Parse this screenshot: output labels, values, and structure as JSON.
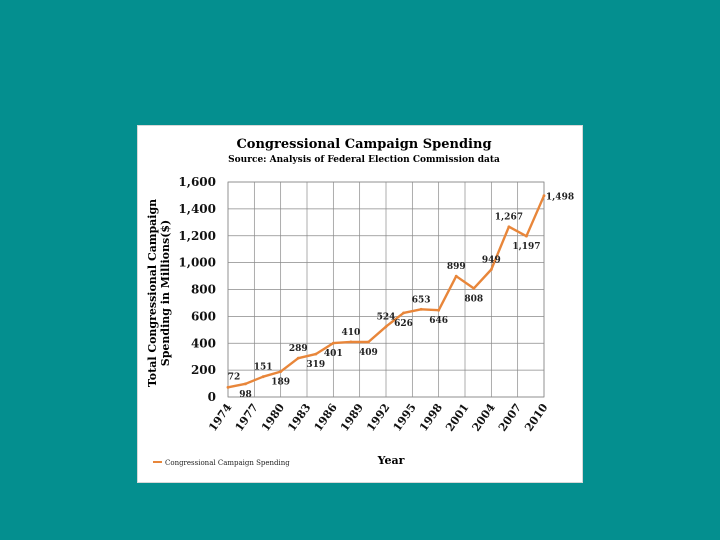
{
  "slide": {
    "background": "#048f8f"
  },
  "chart_data": {
    "type": "line",
    "title": "Congressional Campaign Spending",
    "subtitle": "Source: Analysis of Federal Election Commission data",
    "ylabel_line1": "Total Congressional Campaign",
    "ylabel_line2": "Spending in Millions($)",
    "xlabel": "Year",
    "ylim": [
      0,
      1600
    ],
    "yticks": [
      0,
      200,
      400,
      600,
      800,
      1000,
      1200,
      1400,
      1600
    ],
    "ytick_labels": [
      "0",
      "200",
      "400",
      "600",
      "800",
      "1,000",
      "1,200",
      "1,400",
      "1,600"
    ],
    "xticks": [
      "1974",
      "1977",
      "1980",
      "1983",
      "1986",
      "1989",
      "1992",
      "1995",
      "1998",
      "2001",
      "2004",
      "2007",
      "2010"
    ],
    "series": [
      {
        "name": "Congressional Campaign Spending",
        "color": "#e8863a",
        "x": [
          1974,
          1976,
          1978,
          1980,
          1982,
          1984,
          1986,
          1988,
          1990,
          1992,
          1994,
          1996,
          1998,
          2000,
          2002,
          2004,
          2006,
          2008,
          2010
        ],
        "values": [
          72,
          98,
          151,
          189,
          289,
          319,
          401,
          410,
          409,
          524,
          626,
          653,
          646,
          899,
          808,
          949,
          1267,
          1197,
          1498
        ],
        "labels": [
          "72",
          "98",
          "151",
          "189",
          "289",
          "319",
          "401",
          "410",
          "409",
          "524",
          "626",
          "653",
          "646",
          "899",
          "808",
          "949",
          "1,267",
          "1,197",
          "1,498"
        ]
      }
    ],
    "legend": {
      "label": "Congressional Campaign Spending",
      "position": "bottom-left"
    }
  }
}
